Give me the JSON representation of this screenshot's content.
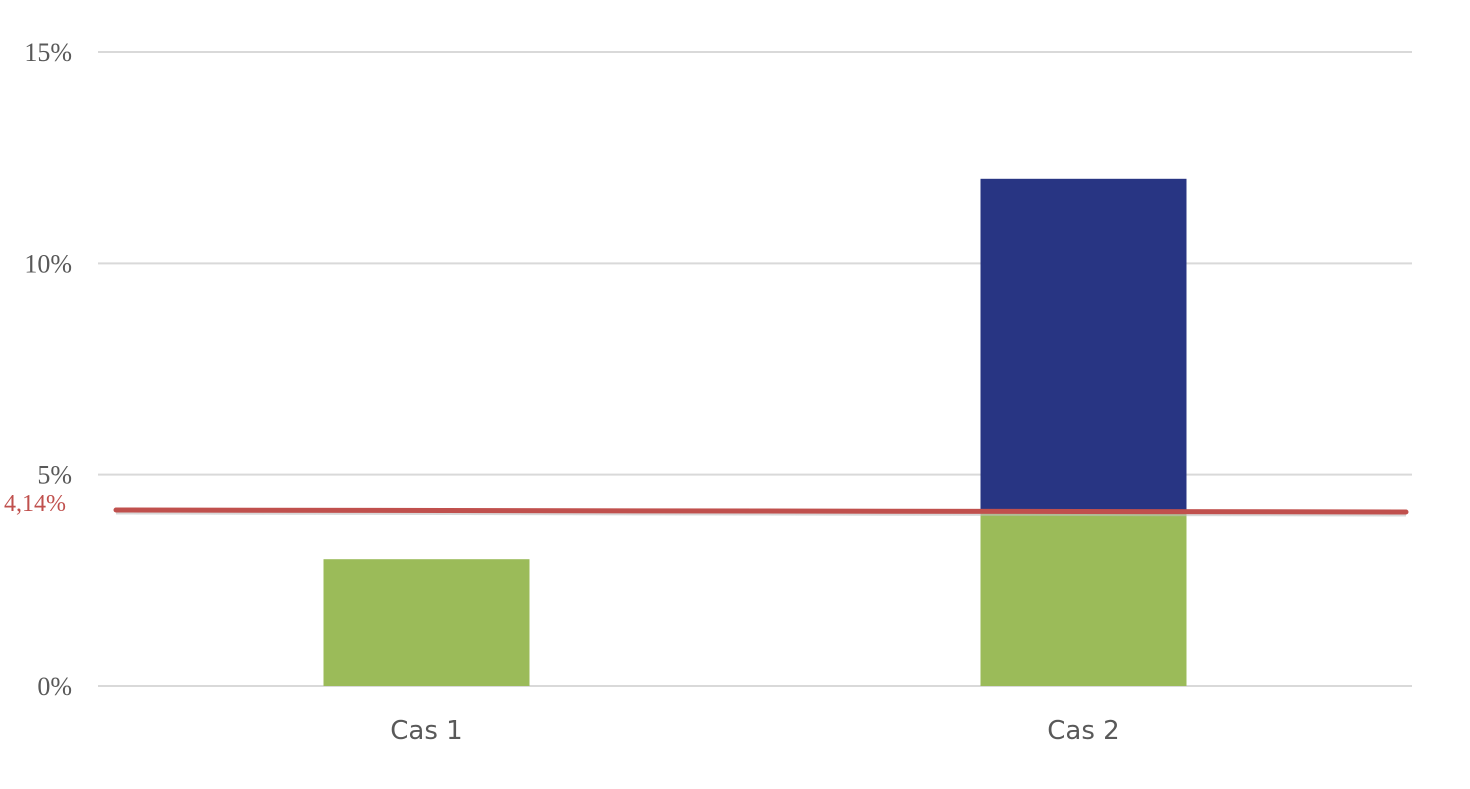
{
  "chart_data": {
    "type": "bar",
    "stacked": true,
    "categories": [
      "Cas 1",
      "Cas 2"
    ],
    "series": [
      {
        "color": "#9BBB59",
        "values": [
          3.0,
          4.14
        ]
      },
      {
        "color": "#283583",
        "values": [
          0,
          7.86
        ]
      }
    ],
    "reference_line": {
      "value": 4.14,
      "label": "4,14%",
      "color": "#C0504D"
    },
    "y_ticks": [
      "0%",
      "5%",
      "10%",
      "15%"
    ],
    "y_tick_values": [
      0,
      5,
      10,
      15
    ],
    "ylim": [
      0,
      15
    ],
    "grid": true,
    "title": "",
    "xlabel": "",
    "ylabel": ""
  }
}
